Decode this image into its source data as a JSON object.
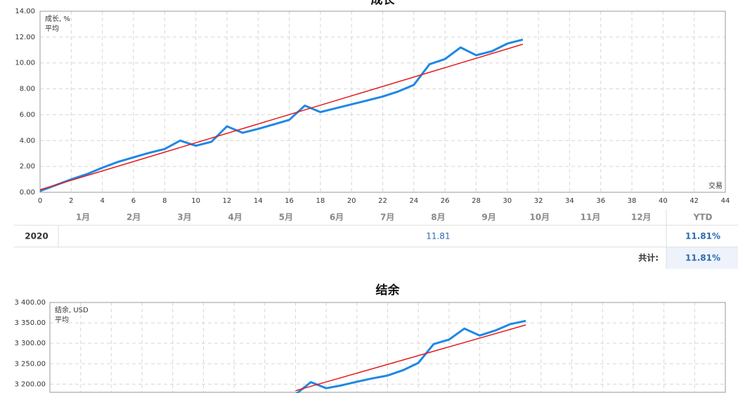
{
  "chart_data": [
    {
      "type": "line",
      "title": "成长",
      "xlabel": "交易",
      "xlim": [
        0,
        44
      ],
      "xticks": [
        0,
        2,
        4,
        6,
        8,
        10,
        12,
        14,
        16,
        18,
        20,
        22,
        24,
        26,
        28,
        30,
        32,
        34,
        36,
        38,
        40,
        42,
        44
      ],
      "x_tick_labels": true,
      "ylim": [
        0,
        14
      ],
      "yticks": [
        {
          "value": 0,
          "label": "0.00"
        },
        {
          "value": 2,
          "label": "2.00"
        },
        {
          "value": 4,
          "label": "4.00"
        },
        {
          "value": 6,
          "label": "6.00"
        },
        {
          "value": 8,
          "label": "8.00"
        },
        {
          "value": 10,
          "label": "10.00"
        },
        {
          "value": 12,
          "label": "12.00"
        },
        {
          "value": 14,
          "label": "14.00"
        }
      ],
      "grid": true,
      "series": [
        {
          "name": "成长, %",
          "color": "#1e88e5",
          "x": [
            0,
            1,
            2,
            3,
            4,
            5,
            6,
            7,
            8,
            9,
            10,
            11,
            12,
            13,
            14,
            15,
            16,
            17,
            18,
            19,
            20,
            21,
            22,
            23,
            24,
            25,
            26,
            27,
            28,
            29,
            30,
            31
          ],
          "values": [
            0.1,
            0.55,
            1.0,
            1.4,
            1.9,
            2.35,
            2.7,
            3.05,
            3.35,
            4.0,
            3.6,
            3.9,
            5.1,
            4.6,
            4.9,
            5.25,
            5.6,
            6.7,
            6.2,
            6.5,
            6.8,
            7.1,
            7.4,
            7.8,
            8.3,
            9.9,
            10.3,
            11.2,
            10.6,
            10.9,
            11.5,
            11.81
          ]
        },
        {
          "name": "平均",
          "color": "#e31b1b",
          "x": [
            0,
            31
          ],
          "values": [
            0.2,
            11.45
          ]
        }
      ]
    },
    {
      "type": "line",
      "title": "结余",
      "xlim": [
        0,
        44
      ],
      "xticks": [
        0,
        2,
        4,
        6,
        8,
        10,
        12,
        14,
        16,
        18,
        20,
        22,
        24,
        26,
        28,
        30,
        32,
        34,
        36,
        38,
        40,
        42,
        44
      ],
      "x_tick_labels": false,
      "ylim": [
        3180,
        3400
      ],
      "yticks": [
        {
          "value": 3200,
          "label": "3 200.00"
        },
        {
          "value": 3250,
          "label": "3 250.00"
        },
        {
          "value": 3300,
          "label": "3 300.00"
        },
        {
          "value": 3350,
          "label": "3 350.00"
        },
        {
          "value": 3400,
          "label": "3 400.00"
        }
      ],
      "grid": true,
      "series": [
        {
          "name": "结余, USD",
          "color": "#1e88e5",
          "x": [
            16,
            17,
            18,
            19,
            20,
            21,
            22,
            23,
            24,
            25,
            26,
            27,
            28,
            29,
            30,
            31
          ],
          "values": [
            3175,
            3205,
            3190,
            3197,
            3206,
            3214,
            3221,
            3234,
            3252,
            3298,
            3309,
            3336,
            3319,
            3331,
            3347,
            3355
          ]
        },
        {
          "name": "平均",
          "color": "#e31b1b",
          "x": [
            16,
            31
          ],
          "values": [
            3184,
            3345
          ]
        }
      ]
    }
  ],
  "table": {
    "months": [
      "1月",
      "2月",
      "3月",
      "4月",
      "5月",
      "6月",
      "7月",
      "8月",
      "9月",
      "10月",
      "11月",
      "12月"
    ],
    "ytd_header": "YTD",
    "rows": [
      {
        "year": "2020",
        "cells": [
          null,
          null,
          null,
          null,
          null,
          null,
          null,
          "11.81",
          null,
          null,
          null,
          null
        ],
        "ytd": "11.81%"
      }
    ],
    "total": {
      "label": "共计:",
      "value": "11.81%"
    }
  }
}
